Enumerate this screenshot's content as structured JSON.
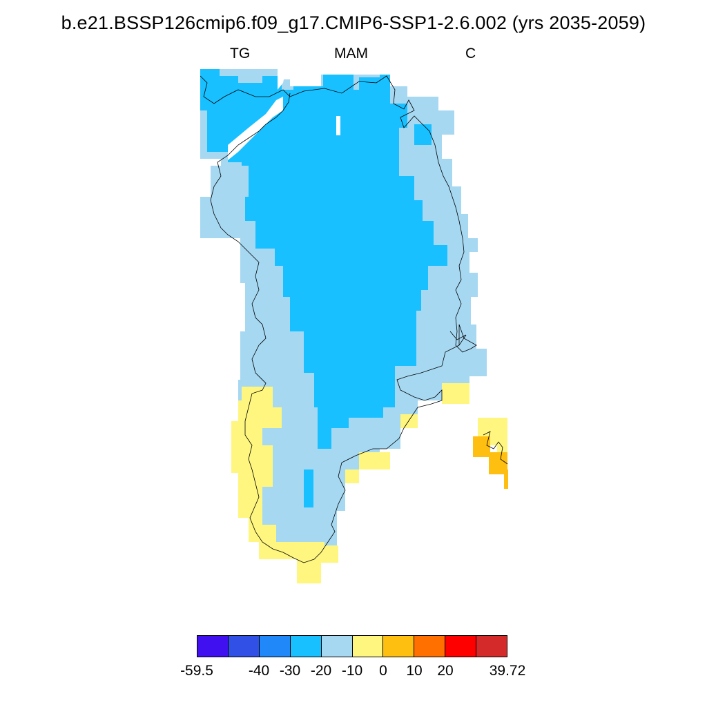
{
  "title": "b.e21.BSSP126cmip6.f09_g17.CMIP6-SSP1-2.6.002 (yrs 2035-2059)",
  "left_label": "TG",
  "center_label": "MAM",
  "right_label": "C",
  "colorbar": {
    "colors": [
      "#4010f0",
      "#3050e6",
      "#2088f8",
      "#18c0ff",
      "#a6d8f2",
      "#fff680",
      "#ffbf10",
      "#ff7000",
      "#ff0000",
      "#d42a2a"
    ],
    "labels": [
      "-59.5",
      "-40",
      "-30",
      "-20",
      "-10",
      "0",
      "10",
      "20",
      "39.72"
    ]
  },
  "map_legend": {
    "deep_blue": "#18c0ff",
    "light_blue": "#a6d8f2",
    "yellow": "#fff680",
    "orange": "#ffbf10"
  }
}
